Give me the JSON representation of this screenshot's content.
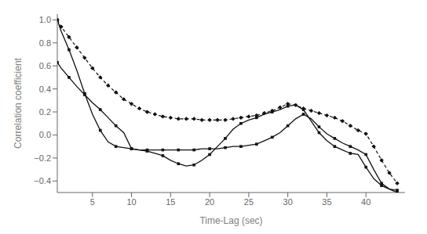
{
  "chart_data": {
    "type": "line",
    "xlabel": "Time-Lag (sec)",
    "ylabel": "Correlation coefficient",
    "xlim": [
      0.5,
      45
    ],
    "ylim": [
      -0.5,
      1.05
    ],
    "xticks": [
      5,
      10,
      15,
      20,
      25,
      30,
      35,
      40
    ],
    "yticks": [
      {
        "value": -0.4,
        "label": "−0.4"
      },
      {
        "value": -0.2,
        "label": "−0.2"
      },
      {
        "value": 0.0,
        "label": "0.0"
      },
      0.2,
      0.4,
      0.6,
      0.8,
      {
        "value": 1.0,
        "label": "1.0"
      }
    ],
    "grid": false,
    "x": [
      0.5,
      1,
      2,
      3,
      4,
      5,
      6,
      7,
      8,
      9,
      10,
      11,
      12,
      13,
      14,
      15,
      16,
      17,
      18,
      19,
      20,
      21,
      22,
      23,
      24,
      25,
      26,
      27,
      28,
      29,
      30,
      31,
      32,
      33,
      34,
      35,
      36,
      37,
      38,
      39,
      40,
      41,
      42,
      43,
      44
    ],
    "series": [
      {
        "color": "#111111",
        "marker": "square",
        "line_style": "solid",
        "values": [
          1.0,
          0.9,
          0.74,
          0.56,
          0.36,
          0.18,
          0.04,
          -0.06,
          -0.1,
          -0.11,
          -0.12,
          -0.13,
          -0.14,
          -0.16,
          -0.18,
          -0.22,
          -0.25,
          -0.27,
          -0.26,
          -0.22,
          -0.17,
          -0.1,
          -0.03,
          0.05,
          0.1,
          0.13,
          0.15,
          0.18,
          0.2,
          0.22,
          0.25,
          0.26,
          0.22,
          0.12,
          0.02,
          -0.05,
          -0.1,
          -0.13,
          -0.16,
          -0.17,
          -0.28,
          -0.38,
          -0.44,
          -0.47,
          -0.48
        ]
      },
      {
        "color": "#111111",
        "marker": "square",
        "line_style": "solid",
        "values": [
          0.63,
          0.58,
          0.5,
          0.42,
          0.35,
          0.28,
          0.22,
          0.15,
          0.08,
          0.02,
          -0.12,
          -0.13,
          -0.13,
          -0.13,
          -0.13,
          -0.13,
          -0.13,
          -0.13,
          -0.13,
          -0.12,
          -0.12,
          -0.12,
          -0.11,
          -0.1,
          -0.1,
          -0.09,
          -0.08,
          -0.05,
          -0.02,
          0.02,
          0.08,
          0.14,
          0.18,
          0.14,
          0.07,
          0.01,
          -0.03,
          -0.07,
          -0.1,
          -0.13,
          -0.17,
          -0.3,
          -0.42,
          -0.47,
          -0.5
        ]
      },
      {
        "color": "#111111",
        "marker": "diamond",
        "line_style": "dashed",
        "values": [
          1.0,
          0.94,
          0.85,
          0.76,
          0.67,
          0.58,
          0.5,
          0.43,
          0.37,
          0.31,
          0.27,
          0.23,
          0.2,
          0.18,
          0.16,
          0.15,
          0.14,
          0.14,
          0.14,
          0.13,
          0.13,
          0.13,
          0.13,
          0.14,
          0.15,
          0.16,
          0.17,
          0.19,
          0.21,
          0.24,
          0.27,
          0.26,
          0.23,
          0.21,
          0.19,
          0.17,
          0.15,
          0.12,
          0.08,
          0.04,
          0.01,
          -0.1,
          -0.22,
          -0.33,
          -0.42
        ]
      }
    ]
  }
}
